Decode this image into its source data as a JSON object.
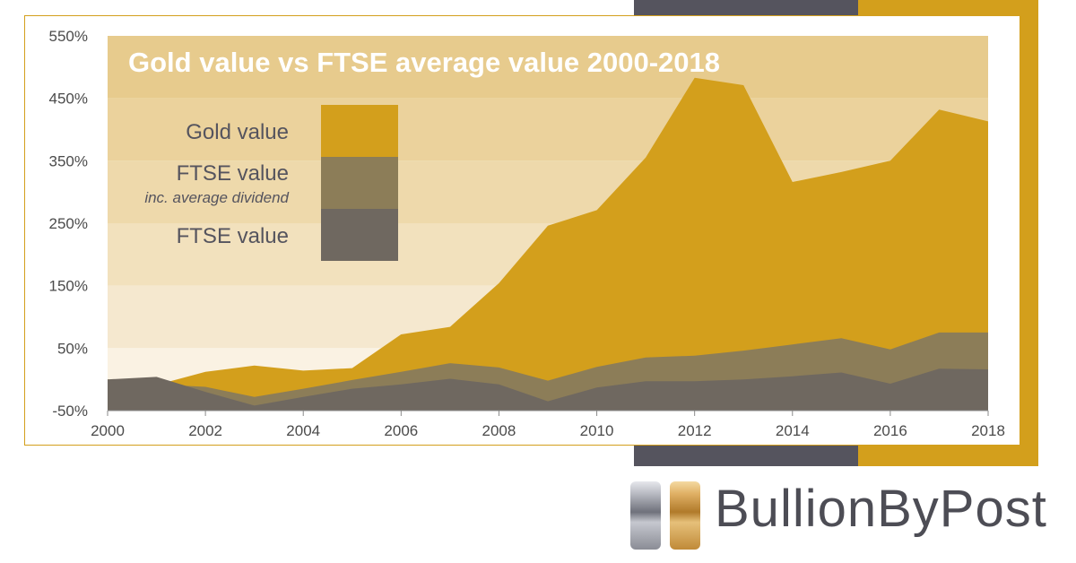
{
  "chart_data": {
    "type": "area",
    "title": "Gold value vs FTSE average value 2000-2018",
    "x": [
      2000,
      2001,
      2002,
      2003,
      2004,
      2005,
      2006,
      2007,
      2008,
      2009,
      2010,
      2011,
      2012,
      2013,
      2014,
      2015,
      2016,
      2017,
      2018
    ],
    "x_ticks": [
      "2000",
      "2002",
      "2004",
      "2006",
      "2008",
      "2010",
      "2012",
      "2014",
      "2016",
      "2018"
    ],
    "y_ticks": [
      "550%",
      "450%",
      "350%",
      "250%",
      "150%",
      "50%",
      "-50%"
    ],
    "ylim": [
      -50,
      550
    ],
    "series": [
      {
        "name": "Gold value",
        "color": "#d39f1c",
        "values": [
          0,
          -9,
          12,
          22,
          14,
          18,
          72,
          84,
          154,
          246,
          271,
          355,
          483,
          471,
          316,
          332,
          350,
          432,
          413
        ]
      },
      {
        "name": "FTSE value",
        "sublabel": "inc. average dividend",
        "color": "#8c7d58",
        "values": [
          0,
          -8,
          -12,
          -28,
          -15,
          -1,
          12,
          26,
          19,
          -2,
          20,
          35,
          38,
          46,
          56,
          66,
          48,
          75,
          75
        ]
      },
      {
        "name": "FTSE value",
        "color": "#6f6860",
        "values": [
          0,
          4,
          -20,
          -42,
          -28,
          -15,
          -8,
          1,
          -8,
          -35,
          -13,
          -3,
          -3,
          0,
          5,
          11,
          -7,
          17,
          16
        ]
      }
    ]
  },
  "brand": {
    "name": "BullionByPost"
  },
  "colors": {
    "gold": "#d39f1c",
    "dark": "#55545e"
  }
}
